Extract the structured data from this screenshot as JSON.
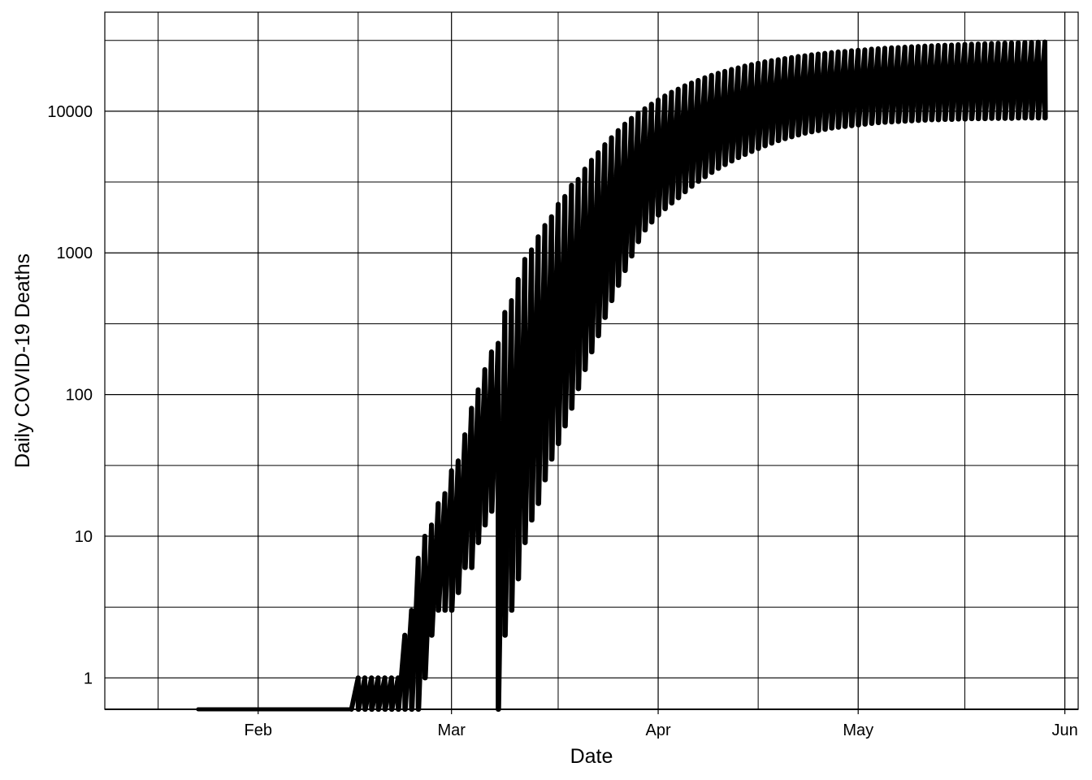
{
  "chart_data": {
    "type": "line",
    "xlabel": "Date",
    "ylabel": "Daily COVID-19 Deaths",
    "y_scale": "log10",
    "grid": true,
    "legend": "none",
    "line_color": "#000000",
    "xlim": [
      "2020-01-08",
      "2020-06-02"
    ],
    "ylim": [
      0.6,
      50000
    ],
    "x_ticks": [
      {
        "date": "2020-01-31",
        "label": "Feb"
      },
      {
        "date": "2020-02-29",
        "label": "Mar"
      },
      {
        "date": "2020-03-31",
        "label": "Apr"
      },
      {
        "date": "2020-04-30",
        "label": "May"
      },
      {
        "date": "2020-05-31",
        "label": "Jun"
      }
    ],
    "x_minor_ticks": [
      "2020-01-16",
      "2020-02-15",
      "2020-03-16",
      "2020-04-15",
      "2020-05-16"
    ],
    "y_ticks": [
      {
        "value": 1,
        "label": "1"
      },
      {
        "value": 10,
        "label": "10"
      },
      {
        "value": 100,
        "label": "100"
      },
      {
        "value": 1000,
        "label": "1000"
      },
      {
        "value": 10000,
        "label": "10000"
      }
    ],
    "y_minor_ticks": [
      3.16,
      31.6,
      316,
      3162,
      31623
    ],
    "floor_segment": {
      "start": "2020-01-22",
      "end": "2020-02-14",
      "value": 0.6
    },
    "series": [
      {
        "dates": [
          "2020-02-15",
          "2020-02-16",
          "2020-02-17",
          "2020-02-18",
          "2020-02-19",
          "2020-02-20",
          "2020-02-21",
          "2020-02-22",
          "2020-02-23",
          "2020-02-24",
          "2020-02-25",
          "2020-02-26",
          "2020-02-27",
          "2020-02-28",
          "2020-02-29",
          "2020-03-01",
          "2020-03-02",
          "2020-03-03",
          "2020-03-04",
          "2020-03-05",
          "2020-03-06",
          "2020-03-07",
          "2020-03-08",
          "2020-03-09",
          "2020-03-10",
          "2020-03-11",
          "2020-03-12",
          "2020-03-13",
          "2020-03-14",
          "2020-03-15",
          "2020-03-16",
          "2020-03-17",
          "2020-03-18",
          "2020-03-19",
          "2020-03-20",
          "2020-03-21",
          "2020-03-22",
          "2020-03-23",
          "2020-03-24",
          "2020-03-25",
          "2020-03-26",
          "2020-03-27",
          "2020-03-28",
          "2020-03-29",
          "2020-03-30",
          "2020-03-31",
          "2020-04-01",
          "2020-04-02",
          "2020-04-03",
          "2020-04-04",
          "2020-04-05",
          "2020-04-06",
          "2020-04-07",
          "2020-04-08",
          "2020-04-09",
          "2020-04-10",
          "2020-04-11",
          "2020-04-12",
          "2020-04-13",
          "2020-04-14",
          "2020-04-15",
          "2020-04-16",
          "2020-04-17",
          "2020-04-18",
          "2020-04-19",
          "2020-04-20",
          "2020-04-21",
          "2020-04-22",
          "2020-04-23",
          "2020-04-24",
          "2020-04-25",
          "2020-04-26",
          "2020-04-27",
          "2020-04-28",
          "2020-04-29",
          "2020-04-30",
          "2020-05-01",
          "2020-05-02",
          "2020-05-03",
          "2020-05-04",
          "2020-05-05",
          "2020-05-06",
          "2020-05-07",
          "2020-05-08",
          "2020-05-09",
          "2020-05-10",
          "2020-05-11",
          "2020-05-12",
          "2020-05-13",
          "2020-05-14",
          "2020-05-15",
          "2020-05-16",
          "2020-05-17",
          "2020-05-18",
          "2020-05-19",
          "2020-05-20",
          "2020-05-21",
          "2020-05-22",
          "2020-05-23",
          "2020-05-24",
          "2020-05-25",
          "2020-05-26",
          "2020-05-27",
          "2020-05-28"
        ],
        "upper": [
          1,
          1,
          1,
          1,
          1,
          1,
          1,
          2,
          3,
          7,
          10,
          12,
          17,
          20,
          29,
          34,
          52,
          80,
          108,
          150,
          200,
          230,
          380,
          460,
          650,
          900,
          1050,
          1300,
          1560,
          1800,
          2200,
          2500,
          3000,
          3300,
          3900,
          4500,
          5100,
          5800,
          6500,
          7300,
          8100,
          8900,
          9700,
          10400,
          11200,
          12000,
          12800,
          13600,
          14300,
          15100,
          15800,
          16500,
          17200,
          17900,
          18500,
          19100,
          19700,
          20200,
          20800,
          21300,
          21800,
          22300,
          22700,
          23100,
          23500,
          23900,
          24300,
          24600,
          25000,
          25300,
          25600,
          25900,
          26200,
          26400,
          26700,
          26900,
          27100,
          27400,
          27600,
          27800,
          28000,
          28100,
          28300,
          28500,
          28600,
          28800,
          28900,
          29100,
          29200,
          29300,
          29500,
          29600,
          29700,
          29800,
          29900,
          30000,
          30100,
          30200,
          30300,
          30400,
          30500,
          30600,
          30700,
          30800
        ],
        "lower": [
          0.6,
          0.6,
          0.6,
          0.6,
          0.6,
          0.6,
          0.6,
          0.6,
          0.6,
          0.6,
          1,
          2,
          3,
          3,
          3,
          4,
          6,
          6,
          9,
          12,
          15,
          0.6,
          2,
          3,
          5,
          9,
          13,
          17,
          25,
          35,
          45,
          60,
          80,
          110,
          150,
          200,
          260,
          350,
          460,
          590,
          750,
          950,
          1200,
          1450,
          1650,
          1850,
          2050,
          2250,
          2450,
          2700,
          2950,
          3200,
          3450,
          3700,
          3950,
          4200,
          4450,
          4700,
          4950,
          5200,
          5450,
          5700,
          5950,
          6200,
          6400,
          6600,
          6800,
          7000,
          7150,
          7300,
          7450,
          7600,
          7700,
          7800,
          7900,
          8000,
          8100,
          8200,
          8300,
          8350,
          8400,
          8450,
          8500,
          8550,
          8600,
          8650,
          8700,
          8700,
          8750,
          8750,
          8800,
          8800,
          8850,
          8850,
          8850,
          8900,
          8900,
          8900,
          8900,
          8950,
          8950,
          8950,
          8950,
          8950
        ]
      }
    ]
  }
}
